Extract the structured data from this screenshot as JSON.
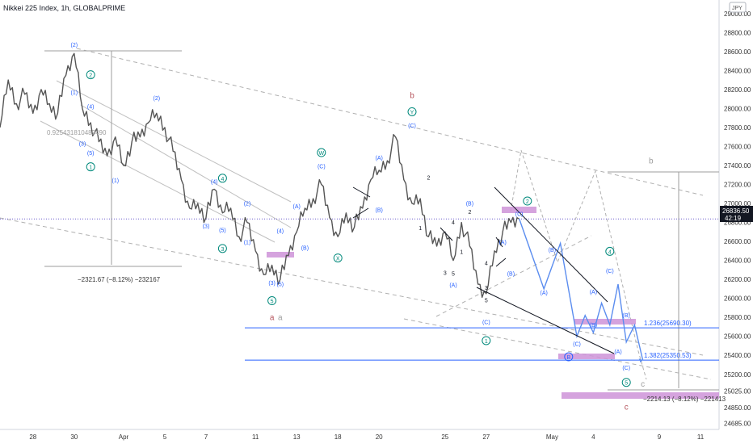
{
  "header": {
    "title": "Nikkei 225 Index, 1h, GLOBALPRIME"
  },
  "currency": "JPY",
  "price_tag": {
    "price": "26836.50",
    "countdown": "42:19"
  },
  "colors": {
    "candle": "#555555",
    "blue": "#2962ff",
    "green": "#26a69a",
    "teal": "#00897b",
    "maroon": "#b5545c",
    "gray": "#9e9e9e",
    "pink": "#ce93d8",
    "black": "#131722",
    "dotted": "#6a5acd"
  },
  "chart_data": {
    "type": "line",
    "title": "Nikkei 225 Index, 1h, GLOBALPRIME",
    "xlabel": "",
    "ylabel": "",
    "x_ticks": [
      {
        "label": "28",
        "i": 4
      },
      {
        "label": "30",
        "i": 9
      },
      {
        "label": "Apr",
        "i": 15
      },
      {
        "label": "5",
        "i": 20
      },
      {
        "label": "7",
        "i": 25
      },
      {
        "label": "11",
        "i": 31
      },
      {
        "label": "13",
        "i": 36
      },
      {
        "label": "18",
        "i": 41
      },
      {
        "label": "20",
        "i": 46
      },
      {
        "label": "25",
        "i": 54
      },
      {
        "label": "27",
        "i": 59
      },
      {
        "label": "May",
        "i": 67
      },
      {
        "label": "4",
        "i": 72
      },
      {
        "label": "9",
        "i": 80
      },
      {
        "label": "11",
        "i": 85
      }
    ],
    "y_ticks": [
      24685.0,
      24850.0,
      25025.0,
      25200.0,
      25400.0,
      25600.0,
      25800.0,
      26000.0,
      26200.0,
      26400.0,
      26600.0,
      26800.0,
      27000.0,
      27200.0,
      27400.0,
      27600.0,
      27800.0,
      28000.0,
      28200.0,
      28400.0,
      28600.0,
      28800.0,
      29000.0
    ],
    "ylim": [
      24620,
      29100
    ],
    "grid": false,
    "series": [
      {
        "values": [
          27800,
          28300,
          28050,
          28150,
          27950,
          28200,
          28050,
          27950,
          28350,
          28580,
          28000,
          27850,
          27650,
          27500,
          27700,
          27400,
          27650,
          27700,
          27850,
          27950,
          27800,
          27550,
          27250,
          26950,
          27000,
          26850,
          27150,
          26900,
          26950,
          26650,
          26800,
          26500,
          26250,
          26350,
          26200,
          26450,
          26700,
          26950,
          27050,
          27200,
          26850,
          26650,
          26900,
          26750,
          26950,
          27250,
          27350,
          27450,
          27700,
          27250,
          27000,
          27050,
          26650,
          26550,
          26700,
          26400,
          26800,
          26550,
          26150,
          26050,
          26500,
          26700,
          26800,
          26836.5
        ]
      }
    ],
    "projection": [
      {
        "i": 63,
        "v": 26840
      },
      {
        "i": 66,
        "v": 26100
      },
      {
        "i": 68,
        "v": 26580
      },
      {
        "i": 70,
        "v": 25600
      },
      {
        "i": 71,
        "v": 25820
      },
      {
        "i": 72,
        "v": 25640
      },
      {
        "i": 73,
        "v": 25950
      },
      {
        "i": 74,
        "v": 25720
      },
      {
        "i": 75,
        "v": 26150
      },
      {
        "i": 76,
        "v": 25540
      },
      {
        "i": 77,
        "v": 25720
      },
      {
        "i": 78,
        "v": 25350
      }
    ],
    "fib_levels": [
      {
        "label": "1.236(25690.30)",
        "value": 25690.3
      },
      {
        "label": "1.382(25350.53)",
        "value": 25350.53
      }
    ],
    "current_price": 26836.5,
    "measures": [
      {
        "label": "−2321.67 (−8.12%) −232167"
      },
      {
        "label": "−2214.13 (−8.12%) −221413"
      },
      {
        "label": "0.925431810489490"
      }
    ],
    "annotations": [
      {
        "text": "(2)",
        "i": 9,
        "v": 28650,
        "c": "blue"
      },
      {
        "text": "2",
        "i": 11,
        "v": 28330,
        "c": "teal",
        "circle": true
      },
      {
        "text": "(1)",
        "i": 9,
        "v": 28150,
        "c": "blue"
      },
      {
        "text": "(4)",
        "i": 11,
        "v": 28000,
        "c": "blue"
      },
      {
        "text": "(3)",
        "i": 10,
        "v": 27610,
        "c": "blue"
      },
      {
        "text": "(5)",
        "i": 11,
        "v": 27510,
        "c": "blue"
      },
      {
        "text": "1",
        "i": 11,
        "v": 27360,
        "c": "teal",
        "circle": true
      },
      {
        "text": "(1)",
        "i": 14,
        "v": 27220,
        "c": "blue"
      },
      {
        "text": "(2)",
        "i": 19,
        "v": 28090,
        "c": "blue"
      },
      {
        "text": "4",
        "i": 27,
        "v": 27240,
        "c": "teal",
        "circle": true
      },
      {
        "text": "(4)",
        "i": 26,
        "v": 27210,
        "c": "blue"
      },
      {
        "text": "(2)",
        "i": 30,
        "v": 26980,
        "c": "blue"
      },
      {
        "text": "(3)",
        "i": 25,
        "v": 26740,
        "c": "blue"
      },
      {
        "text": "(5)",
        "i": 27,
        "v": 26700,
        "c": "blue"
      },
      {
        "text": "3",
        "i": 27,
        "v": 26500,
        "c": "teal",
        "circle": true
      },
      {
        "text": "(1)",
        "i": 30,
        "v": 26570,
        "c": "blue"
      },
      {
        "text": "(4)",
        "i": 34,
        "v": 26690,
        "c": "blue"
      },
      {
        "text": "(3)",
        "i": 33,
        "v": 26140,
        "c": "blue"
      },
      {
        "text": "(5)",
        "i": 34,
        "v": 26130,
        "c": "blue"
      },
      {
        "text": "5",
        "i": 33,
        "v": 25950,
        "c": "teal",
        "circle": true
      },
      {
        "text": "(A)",
        "i": 36,
        "v": 26950,
        "c": "blue"
      },
      {
        "text": "(B)",
        "i": 37,
        "v": 26510,
        "c": "blue"
      },
      {
        "text": "W",
        "i": 39,
        "v": 27510,
        "c": "teal",
        "circle": true
      },
      {
        "text": "(C)",
        "i": 39,
        "v": 27370,
        "c": "blue"
      },
      {
        "text": "X",
        "i": 41,
        "v": 26400,
        "c": "teal",
        "circle": true
      },
      {
        "text": "(B)",
        "i": 46,
        "v": 26910,
        "c": "blue"
      },
      {
        "text": "(A)",
        "i": 46,
        "v": 27460,
        "c": "blue"
      },
      {
        "text": "b",
        "i": 50,
        "v": 28110,
        "c": "maroon"
      },
      {
        "text": "Y",
        "i": 50,
        "v": 27940,
        "c": "teal",
        "circle": true
      },
      {
        "text": "(C)",
        "i": 50,
        "v": 27800,
        "c": "blue"
      },
      {
        "text": "2",
        "i": 52,
        "v": 27250,
        "c": "black"
      },
      {
        "text": "1",
        "i": 51,
        "v": 26720,
        "c": "black"
      },
      {
        "text": "4",
        "i": 55,
        "v": 26780,
        "c": "black"
      },
      {
        "text": "1",
        "i": 56,
        "v": 26470,
        "c": "black"
      },
      {
        "text": "(B)",
        "i": 57,
        "v": 26980,
        "c": "blue"
      },
      {
        "text": "2",
        "i": 57,
        "v": 26890,
        "c": "black"
      },
      {
        "text": "3",
        "i": 54,
        "v": 26250,
        "c": "black"
      },
      {
        "text": "5",
        "i": 55,
        "v": 26240,
        "c": "black"
      },
      {
        "text": "(A)",
        "i": 55,
        "v": 26120,
        "c": "blue"
      },
      {
        "text": "4",
        "i": 59,
        "v": 26350,
        "c": "black"
      },
      {
        "text": "3",
        "i": 59,
        "v": 26090,
        "c": "black"
      },
      {
        "text": "5",
        "i": 59,
        "v": 25960,
        "c": "black"
      },
      {
        "text": "(A)",
        "i": 61,
        "v": 26570,
        "c": "blue"
      },
      {
        "text": "(B)",
        "i": 62,
        "v": 26240,
        "c": "blue"
      },
      {
        "text": "(C)",
        "i": 63,
        "v": 26870,
        "c": "blue"
      },
      {
        "text": "2",
        "i": 64,
        "v": 27000,
        "c": "teal",
        "circle": true
      },
      {
        "text": "(A)",
        "i": 66,
        "v": 26040,
        "c": "blue"
      },
      {
        "text": "(B)",
        "i": 67,
        "v": 26490,
        "c": "blue"
      },
      {
        "text": "(C)",
        "i": 70,
        "v": 25500,
        "c": "blue"
      },
      {
        "text": "(A)",
        "i": 72,
        "v": 26050,
        "c": "blue"
      },
      {
        "text": "(B)",
        "i": 72,
        "v": 25700,
        "c": "blue"
      },
      {
        "text": "(C)",
        "i": 74,
        "v": 26270,
        "c": "blue"
      },
      {
        "text": "4",
        "i": 74,
        "v": 26470,
        "c": "teal",
        "circle": true
      },
      {
        "text": "(A)",
        "i": 75,
        "v": 25420,
        "c": "blue"
      },
      {
        "text": "(B)",
        "i": 76,
        "v": 25800,
        "c": "blue"
      },
      {
        "text": "(C)",
        "i": 76,
        "v": 25250,
        "c": "blue"
      },
      {
        "text": "5",
        "i": 76,
        "v": 25090,
        "c": "teal",
        "circle": true
      },
      {
        "text": "c",
        "i": 78,
        "v": 25070,
        "c": "gray"
      },
      {
        "text": "c",
        "i": 76,
        "v": 24830,
        "c": "maroon"
      },
      {
        "text": "b",
        "i": 79,
        "v": 27420,
        "c": "gray"
      },
      {
        "text": "a",
        "i": 33,
        "v": 25770,
        "c": "maroon"
      },
      {
        "text": "a",
        "i": 34,
        "v": 25770,
        "c": "gray"
      },
      {
        "text": "(C)",
        "i": 59,
        "v": 25730,
        "c": "blue"
      },
      {
        "text": "1",
        "i": 59,
        "v": 25530,
        "c": "teal",
        "circle": true
      },
      {
        "text": "B",
        "i": 69,
        "v": 25360,
        "c": "blue",
        "circle": true
      }
    ]
  }
}
